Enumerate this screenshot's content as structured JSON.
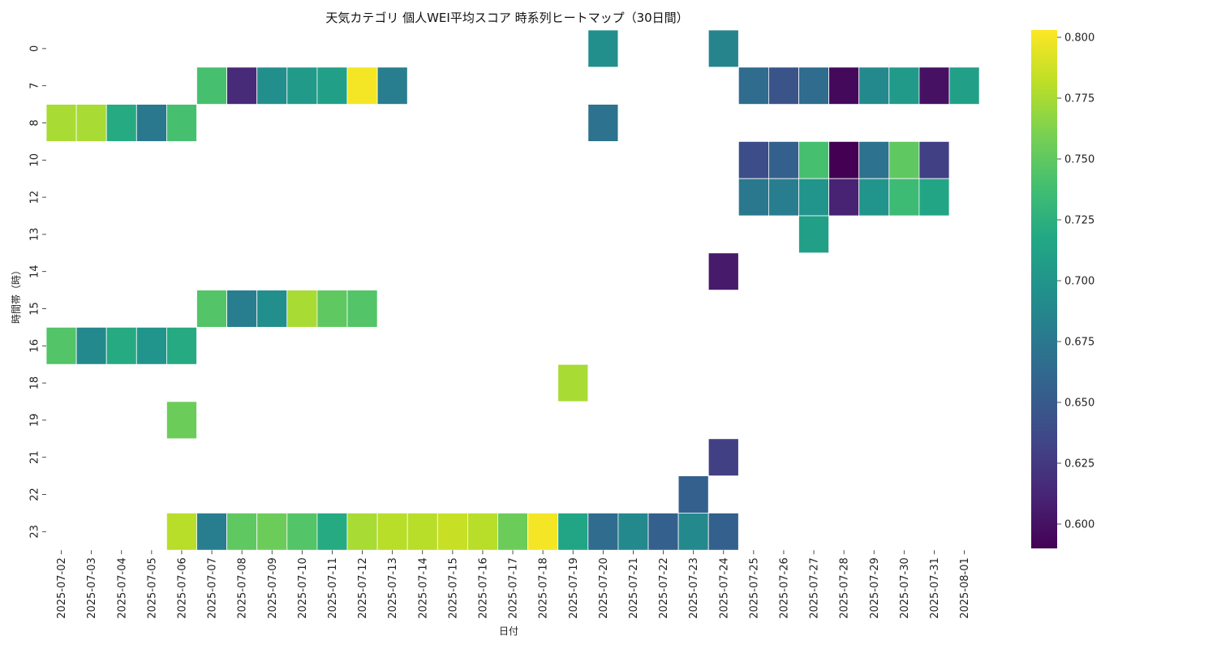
{
  "chart_data": {
    "type": "heatmap",
    "title": "天気カテゴリ 個人WEI平均スコア 時系列ヒートマップ（30日間）",
    "xlabel": "日付",
    "ylabel": "時間帯（時）",
    "x": [
      "2025-07-02",
      "2025-07-03",
      "2025-07-04",
      "2025-07-05",
      "2025-07-06",
      "2025-07-07",
      "2025-07-08",
      "2025-07-09",
      "2025-07-10",
      "2025-07-11",
      "2025-07-12",
      "2025-07-13",
      "2025-07-14",
      "2025-07-15",
      "2025-07-16",
      "2025-07-17",
      "2025-07-18",
      "2025-07-19",
      "2025-07-20",
      "2025-07-21",
      "2025-07-22",
      "2025-07-23",
      "2025-07-24",
      "2025-07-25",
      "2025-07-26",
      "2025-07-27",
      "2025-07-28",
      "2025-07-29",
      "2025-07-30",
      "2025-07-31",
      "2025-08-01"
    ],
    "y": [
      "0",
      "7",
      "8",
      "10",
      "12",
      "13",
      "14",
      "15",
      "16",
      "18",
      "19",
      "21",
      "22",
      "23"
    ],
    "colorbar": {
      "colormap": "viridis",
      "range": [
        0.59,
        0.803
      ],
      "ticks": [
        "0.600",
        "0.625",
        "0.650",
        "0.675",
        "0.700",
        "0.725",
        "0.750",
        "0.775",
        "0.800"
      ]
    },
    "cells": [
      {
        "x": "2025-07-20",
        "y": "0",
        "v": 0.695
      },
      {
        "x": "2025-07-24",
        "y": "0",
        "v": 0.685
      },
      {
        "x": "2025-07-07",
        "y": "7",
        "v": 0.74
      },
      {
        "x": "2025-07-08",
        "y": "7",
        "v": 0.615
      },
      {
        "x": "2025-07-09",
        "y": "7",
        "v": 0.695
      },
      {
        "x": "2025-07-10",
        "y": "7",
        "v": 0.705
      },
      {
        "x": "2025-07-11",
        "y": "7",
        "v": 0.71
      },
      {
        "x": "2025-07-12",
        "y": "7",
        "v": 0.8
      },
      {
        "x": "2025-07-13",
        "y": "7",
        "v": 0.68
      },
      {
        "x": "2025-07-25",
        "y": "7",
        "v": 0.665
      },
      {
        "x": "2025-07-26",
        "y": "7",
        "v": 0.645
      },
      {
        "x": "2025-07-27",
        "y": "7",
        "v": 0.665
      },
      {
        "x": "2025-07-28",
        "y": "7",
        "v": 0.595
      },
      {
        "x": "2025-07-29",
        "y": "7",
        "v": 0.69
      },
      {
        "x": "2025-07-30",
        "y": "7",
        "v": 0.705
      },
      {
        "x": "2025-07-31",
        "y": "7",
        "v": 0.6
      },
      {
        "x": "2025-08-01",
        "y": "7",
        "v": 0.71
      },
      {
        "x": "2025-07-02",
        "y": "8",
        "v": 0.775
      },
      {
        "x": "2025-07-03",
        "y": "8",
        "v": 0.775
      },
      {
        "x": "2025-07-04",
        "y": "8",
        "v": 0.72
      },
      {
        "x": "2025-07-05",
        "y": "8",
        "v": 0.675
      },
      {
        "x": "2025-07-06",
        "y": "8",
        "v": 0.74
      },
      {
        "x": "2025-07-20",
        "y": "8",
        "v": 0.67
      },
      {
        "x": "2025-07-25",
        "y": "10",
        "v": 0.64
      },
      {
        "x": "2025-07-26",
        "y": "10",
        "v": 0.655
      },
      {
        "x": "2025-07-27",
        "y": "10",
        "v": 0.74
      },
      {
        "x": "2025-07-28",
        "y": "10",
        "v": 0.59
      },
      {
        "x": "2025-07-29",
        "y": "10",
        "v": 0.67
      },
      {
        "x": "2025-07-30",
        "y": "10",
        "v": 0.75
      },
      {
        "x": "2025-07-31",
        "y": "10",
        "v": 0.63
      },
      {
        "x": "2025-07-25",
        "y": "12",
        "v": 0.675
      },
      {
        "x": "2025-07-26",
        "y": "12",
        "v": 0.68
      },
      {
        "x": "2025-07-27",
        "y": "12",
        "v": 0.7
      },
      {
        "x": "2025-07-28",
        "y": "12",
        "v": 0.61
      },
      {
        "x": "2025-07-29",
        "y": "12",
        "v": 0.7
      },
      {
        "x": "2025-07-30",
        "y": "12",
        "v": 0.735
      },
      {
        "x": "2025-07-31",
        "y": "12",
        "v": 0.715
      },
      {
        "x": "2025-07-27",
        "y": "13",
        "v": 0.71
      },
      {
        "x": "2025-07-24",
        "y": "14",
        "v": 0.605
      },
      {
        "x": "2025-07-07",
        "y": "15",
        "v": 0.745
      },
      {
        "x": "2025-07-08",
        "y": "15",
        "v": 0.68
      },
      {
        "x": "2025-07-09",
        "y": "15",
        "v": 0.695
      },
      {
        "x": "2025-07-10",
        "y": "15",
        "v": 0.775
      },
      {
        "x": "2025-07-11",
        "y": "15",
        "v": 0.75
      },
      {
        "x": "2025-07-12",
        "y": "15",
        "v": 0.745
      },
      {
        "x": "2025-07-02",
        "y": "16",
        "v": 0.745
      },
      {
        "x": "2025-07-03",
        "y": "16",
        "v": 0.69
      },
      {
        "x": "2025-07-04",
        "y": "16",
        "v": 0.72
      },
      {
        "x": "2025-07-05",
        "y": "16",
        "v": 0.7
      },
      {
        "x": "2025-07-06",
        "y": "16",
        "v": 0.72
      },
      {
        "x": "2025-07-19",
        "y": "18",
        "v": 0.775
      },
      {
        "x": "2025-07-06",
        "y": "19",
        "v": 0.755
      },
      {
        "x": "2025-07-24",
        "y": "21",
        "v": 0.63
      },
      {
        "x": "2025-07-23",
        "y": "22",
        "v": 0.655
      },
      {
        "x": "2025-07-06",
        "y": "23",
        "v": 0.78
      },
      {
        "x": "2025-07-07",
        "y": "23",
        "v": 0.68
      },
      {
        "x": "2025-07-08",
        "y": "23",
        "v": 0.75
      },
      {
        "x": "2025-07-09",
        "y": "23",
        "v": 0.755
      },
      {
        "x": "2025-07-10",
        "y": "23",
        "v": 0.745
      },
      {
        "x": "2025-07-11",
        "y": "23",
        "v": 0.72
      },
      {
        "x": "2025-07-12",
        "y": "23",
        "v": 0.775
      },
      {
        "x": "2025-07-13",
        "y": "23",
        "v": 0.78
      },
      {
        "x": "2025-07-14",
        "y": "23",
        "v": 0.78
      },
      {
        "x": "2025-07-15",
        "y": "23",
        "v": 0.785
      },
      {
        "x": "2025-07-16",
        "y": "23",
        "v": 0.78
      },
      {
        "x": "2025-07-17",
        "y": "23",
        "v": 0.755
      },
      {
        "x": "2025-07-18",
        "y": "23",
        "v": 0.8
      },
      {
        "x": "2025-07-19",
        "y": "23",
        "v": 0.715
      },
      {
        "x": "2025-07-20",
        "y": "23",
        "v": 0.665
      },
      {
        "x": "2025-07-21",
        "y": "23",
        "v": 0.69
      },
      {
        "x": "2025-07-22",
        "y": "23",
        "v": 0.655
      },
      {
        "x": "2025-07-23",
        "y": "23",
        "v": 0.69
      },
      {
        "x": "2025-07-24",
        "y": "23",
        "v": 0.655
      }
    ]
  }
}
